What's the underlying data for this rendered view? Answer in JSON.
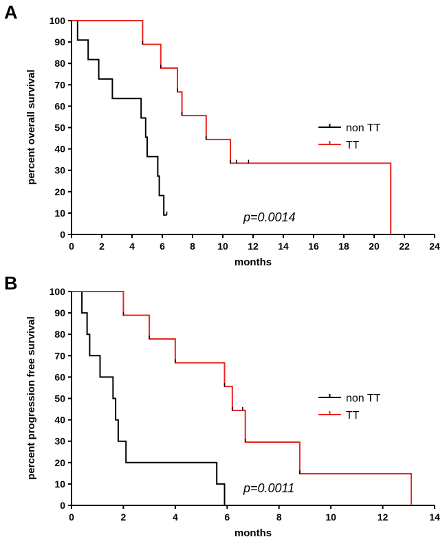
{
  "chart_data": [
    {
      "type": "line",
      "panel_label": "A",
      "title": "",
      "xlabel": "months",
      "ylabel": "percent overall survival",
      "xlim": [
        0,
        24
      ],
      "ylim": [
        0,
        100
      ],
      "x_ticks": [
        "0",
        "2",
        "4",
        "6",
        "8",
        "10",
        "12",
        "14",
        "16",
        "18",
        "20",
        "22",
        "24"
      ],
      "y_ticks": [
        "0",
        "10",
        "20",
        "30",
        "40",
        "50",
        "60",
        "70",
        "80",
        "90",
        "100"
      ],
      "series": [
        {
          "name": "non TT",
          "color": "#000000",
          "steps": [
            [
              0,
              100
            ],
            [
              0.4,
              90.9
            ],
            [
              1.1,
              81.8
            ],
            [
              1.8,
              72.7
            ],
            [
              2.7,
              63.6
            ],
            [
              4.6,
              54.5
            ],
            [
              4.9,
              45.5
            ],
            [
              5.0,
              36.4
            ],
            [
              5.7,
              27.3
            ],
            [
              5.8,
              18.2
            ],
            [
              6.1,
              9.1
            ],
            [
              6.3,
              9.1
            ]
          ],
          "censored": [
            [
              6.3,
              9.1
            ]
          ]
        },
        {
          "name": "TT",
          "color": "#e8261e",
          "steps": [
            [
              0,
              100
            ],
            [
              4.7,
              88.9
            ],
            [
              5.9,
              77.8
            ],
            [
              7.0,
              66.7
            ],
            [
              7.3,
              55.6
            ],
            [
              8.9,
              44.4
            ],
            [
              10.5,
              33.3
            ],
            [
              21.1,
              0
            ],
            [
              21.1,
              0
            ]
          ],
          "censored": [
            [
              4.7,
              88.9
            ],
            [
              5.9,
              77.8
            ],
            [
              7.0,
              66.7
            ],
            [
              7.3,
              55.6
            ],
            [
              8.9,
              44.4
            ],
            [
              10.5,
              33.3
            ],
            [
              10.9,
              33.3
            ],
            [
              11.7,
              33.3
            ]
          ]
        }
      ],
      "legend": {
        "items": [
          "non TT",
          "TT"
        ],
        "position": "right"
      },
      "annotation": "p=0.0014"
    },
    {
      "type": "line",
      "panel_label": "B",
      "title": "",
      "xlabel": "months",
      "ylabel": "percent progression free survival",
      "xlim": [
        0,
        14
      ],
      "ylim": [
        0,
        100
      ],
      "x_ticks": [
        "0",
        "2",
        "4",
        "6",
        "8",
        "10",
        "12",
        "14"
      ],
      "y_ticks": [
        "0",
        "10",
        "20",
        "30",
        "40",
        "50",
        "60",
        "70",
        "80",
        "90",
        "100"
      ],
      "series": [
        {
          "name": "non TT",
          "color": "#000000",
          "steps": [
            [
              0,
              100
            ],
            [
              0.4,
              90
            ],
            [
              0.6,
              80
            ],
            [
              0.7,
              70
            ],
            [
              1.1,
              60
            ],
            [
              1.6,
              50
            ],
            [
              1.7,
              40
            ],
            [
              1.8,
              30
            ],
            [
              2.1,
              20
            ],
            [
              5.6,
              10
            ],
            [
              5.9,
              0
            ],
            [
              5.9,
              0
            ]
          ],
          "censored": []
        },
        {
          "name": "TT",
          "color": "#e8261e",
          "steps": [
            [
              0,
              100
            ],
            [
              2.0,
              88.9
            ],
            [
              3.0,
              77.8
            ],
            [
              4.0,
              66.7
            ],
            [
              5.9,
              55.6
            ],
            [
              6.2,
              44.4
            ],
            [
              6.7,
              29.6
            ],
            [
              8.8,
              14.8
            ],
            [
              13.1,
              0
            ],
            [
              13.1,
              0
            ]
          ],
          "censored": [
            [
              2.0,
              88.9
            ],
            [
              3.0,
              77.8
            ],
            [
              4.0,
              66.7
            ],
            [
              5.9,
              55.6
            ],
            [
              6.2,
              44.4
            ],
            [
              6.6,
              44.4
            ],
            [
              6.7,
              29.6
            ],
            [
              8.8,
              14.8
            ]
          ]
        }
      ],
      "legend": {
        "items": [
          "non TT",
          "TT"
        ],
        "position": "right"
      },
      "annotation": "p=0.0011"
    }
  ]
}
